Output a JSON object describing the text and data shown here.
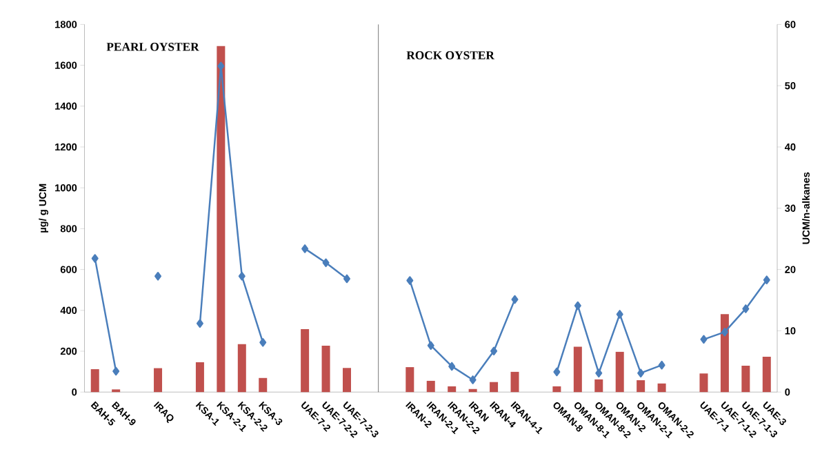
{
  "chart_data": {
    "type": "bar",
    "ylabel": "µg/ g UCM",
    "y2label": "UCM/n-alkanes",
    "categories": [
      "BAH-5",
      "BAH-9",
      null,
      "IRAQ",
      null,
      "KSA-1",
      "KSA-2-1",
      "KSA-2-2",
      "KSA-3",
      null,
      "UAE-7-2",
      "UAE-7-2-2",
      "UAE-7-2-3",
      null,
      null,
      "IRAN-2",
      "IRAN-2-1",
      "IRAN-2-2",
      "IRAN",
      "IRAN-4",
      "IRAN-4-1",
      null,
      "OMAN-8",
      "OMAN-8-1",
      "OMAN-8-2",
      "OMAN-2",
      "OMAN-2-1",
      "OMAN-2-2",
      null,
      "UAE-7-1",
      "UAE-7-1-2",
      "UAE-7-1-3",
      "UAE-3"
    ],
    "series": [
      {
        "color": "#c0504d",
        "values": [
          112,
          13,
          null,
          117,
          null,
          146,
          1694,
          235,
          69,
          null,
          308,
          227,
          118,
          null,
          null,
          122,
          55,
          28,
          15,
          49,
          99,
          null,
          28,
          222,
          62,
          197,
          58,
          42,
          null,
          91,
          382,
          129,
          173
        ]
      },
      {
        "type": "line",
        "axis": "y2",
        "color": "#4a7ebb",
        "marker": "diamond",
        "line_style": "solid",
        "values": [
          21.8,
          3.4,
          null,
          18.9,
          null,
          11.2,
          53.2,
          18.9,
          8.1,
          null,
          23.4,
          21.1,
          18.5,
          null,
          null,
          18.2,
          7.6,
          4.2,
          2.0,
          6.7,
          15.1,
          null,
          3.3,
          14.1,
          3.1,
          12.7,
          3.1,
          4.4,
          null,
          8.6,
          9.8,
          13.6,
          18.3
        ]
      }
    ],
    "ylim": [
      0,
      1800
    ],
    "yticks": [
      0,
      200,
      400,
      600,
      800,
      1000,
      1200,
      1400,
      1600,
      1800
    ],
    "y2lim": [
      0,
      60
    ],
    "y2ticks": [
      0,
      10,
      20,
      30,
      40,
      50,
      60
    ],
    "annotations": [
      "PEARL OYSTER",
      "ROCK OYSTER"
    ]
  }
}
